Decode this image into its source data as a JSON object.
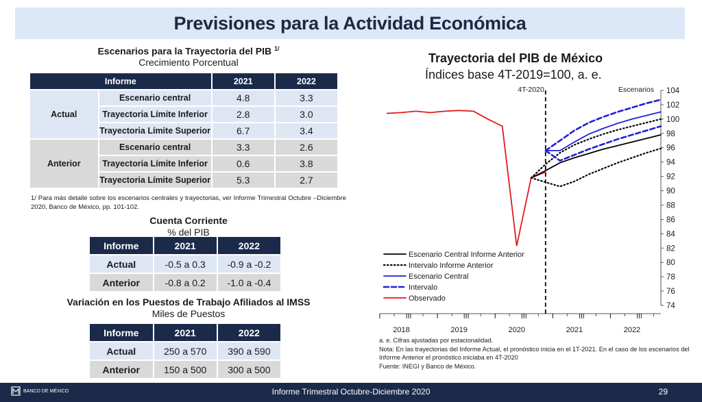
{
  "title": "Previsiones para la Actividad Económica",
  "pib_table": {
    "title": "Escenarios para la Trayectoria del PIB",
    "title_sup": "1/",
    "subtitle": "Crecimiento Porcentual",
    "headers": [
      "Informe",
      "2021",
      "2022"
    ],
    "groups": [
      {
        "label": "Actual",
        "rows": [
          {
            "label": "Escenario central",
            "v2021": "4.8",
            "v2022": "3.3"
          },
          {
            "label": "Trayectoria Límite Inferior",
            "v2021": "2.8",
            "v2022": "3.0"
          },
          {
            "label": "Trayectoria Límite Superior",
            "v2021": "6.7",
            "v2022": "3.4"
          }
        ]
      },
      {
        "label": "Anterior",
        "rows": [
          {
            "label": "Escenario central",
            "v2021": "3.3",
            "v2022": "2.6"
          },
          {
            "label": "Trayectoria Límite Inferior",
            "v2021": "0.6",
            "v2022": "3.8"
          },
          {
            "label": "Trayectoria Límite Superior",
            "v2021": "5.3",
            "v2022": "2.7"
          }
        ]
      }
    ],
    "footnote": "1/ Para más detalle sobre los escenarios centrales y trayectorias, ver Informe Trimestral Octubre –Diciembre 2020, Banco de México, pp. 101-102."
  },
  "cc_table": {
    "title": "Cuenta Corriente",
    "subtitle": "% del PIB",
    "headers": [
      "Informe",
      "2021",
      "2022"
    ],
    "rows": [
      {
        "label": "Actual",
        "v2021": "-0.5 a 0.3",
        "v2022": "-0.9 a -0.2"
      },
      {
        "label": "Anterior",
        "v2021": "-0.8 a 0.2",
        "v2022": "-1.0 a -0.4"
      }
    ]
  },
  "imss_table": {
    "title": "Variación en los Puestos de Trabajo Afiliados al IMSS",
    "subtitle": "Miles de Puestos",
    "headers": [
      "Informe",
      "2021",
      "2022"
    ],
    "rows": [
      {
        "label": "Actual",
        "v2021": "250 a 570",
        "v2022": "390 a 590"
      },
      {
        "label": "Anterior",
        "v2021": "150 a 500",
        "v2022": "300 a 500"
      }
    ]
  },
  "chart_title": "Trayectoria del PIB de México",
  "chart_subtitle": "Índices base 4T-2019=100, a. e.",
  "chart_notes": [
    "a. e. Cifras ajustadas por estacionalidad.",
    "Nota: En las trayectorias del Informe Actual, el pronóstico inicia en el 1T-2021. En el caso de los escenarios del Informe Anterior el pronóstico iniciaba en 4T-2020",
    "Fuente: INEGI y Banco de México."
  ],
  "chart_data": {
    "type": "line",
    "title": "Trayectoria del PIB de México",
    "subtitle": "Índices base 4T-2019=100, a. e.",
    "x_ticks": [
      "I",
      "III",
      "I",
      "III",
      "I",
      "III",
      "I",
      "III",
      "I",
      "III"
    ],
    "x_years": [
      "2018",
      "2019",
      "2020",
      "2021",
      "2022"
    ],
    "y_ticks": [
      74,
      76,
      78,
      80,
      82,
      84,
      86,
      88,
      90,
      92,
      94,
      96,
      98,
      100,
      102,
      104
    ],
    "ylim": [
      74,
      104
    ],
    "y_axis_side": "right",
    "vline_label": "4T-2020",
    "right_label": "Escenarios",
    "legend_position": "bottom-left",
    "colors": {
      "observed": "#e31a1c",
      "actual": "#1f1fd6",
      "anterior": "#000000"
    },
    "series": [
      {
        "name": "Observado",
        "style": "solid",
        "color": "#e31a1c",
        "x": [
          2018.0,
          2018.25,
          2018.5,
          2018.75,
          2019.0,
          2019.25,
          2019.5,
          2019.75,
          2020.0,
          2020.25,
          2020.5,
          2020.75
        ],
        "y": [
          100.8,
          100.9,
          101.1,
          100.9,
          101.1,
          101.2,
          101.1,
          100.0,
          99.0,
          82.3,
          91.8,
          92.6
        ]
      },
      {
        "name": "Escenario Central Informe Anterior",
        "style": "solid",
        "color": "#000000",
        "x": [
          2020.5,
          2020.75,
          2021.0,
          2021.25,
          2021.5,
          2021.75,
          2022.0,
          2022.25,
          2022.5,
          2022.75
        ],
        "y": [
          91.8,
          92.8,
          93.9,
          94.6,
          95.2,
          95.8,
          96.3,
          96.8,
          97.3,
          97.8
        ]
      },
      {
        "name": "Intervalo Informe Anterior",
        "style": "dotted",
        "color": "#000000",
        "x": [
          2020.5,
          2020.75,
          2021.0,
          2021.25,
          2021.5,
          2021.75,
          2022.0,
          2022.25,
          2022.5,
          2022.75
        ],
        "y": [
          91.8,
          91.2,
          90.6,
          91.3,
          92.3,
          93.1,
          93.9,
          94.6,
          95.3,
          95.9
        ]
      },
      {
        "name": "Intervalo Informe Anterior (superior)",
        "style": "dotted",
        "color": "#000000",
        "x": [
          2020.5,
          2020.75,
          2021.0,
          2021.25,
          2021.5,
          2021.75,
          2022.0,
          2022.25,
          2022.5,
          2022.75
        ],
        "y": [
          91.8,
          93.7,
          95.3,
          96.4,
          97.2,
          97.9,
          98.5,
          99.0,
          99.5,
          100.0
        ]
      },
      {
        "name": "Escenario Central",
        "style": "solid",
        "color": "#1f1fd6",
        "x": [
          2020.75,
          2021.0,
          2021.25,
          2021.5,
          2021.75,
          2022.0,
          2022.25,
          2022.5,
          2022.75
        ],
        "y": [
          95.6,
          95.6,
          96.8,
          97.9,
          98.7,
          99.4,
          100.0,
          100.5,
          101.0
        ]
      },
      {
        "name": "Intervalo",
        "style": "dashed",
        "color": "#1f1fd6",
        "x": [
          2020.75,
          2021.0,
          2021.25,
          2021.5,
          2021.75,
          2022.0,
          2022.25,
          2022.5,
          2022.75
        ],
        "y": [
          95.6,
          94.2,
          95.0,
          95.8,
          96.5,
          97.2,
          97.8,
          98.4,
          99.0
        ]
      },
      {
        "name": "Intervalo (superior)",
        "style": "dashed",
        "color": "#1f1fd6",
        "x": [
          2020.75,
          2021.0,
          2021.25,
          2021.5,
          2021.75,
          2022.0,
          2022.25,
          2022.5,
          2022.75
        ],
        "y": [
          95.6,
          97.0,
          98.4,
          99.5,
          100.3,
          101.0,
          101.6,
          102.2,
          102.7
        ]
      }
    ],
    "legend": [
      {
        "label": "Escenario Central Informe Anterior",
        "style": "solid",
        "color": "#000000"
      },
      {
        "label": "Intervalo Informe Anterior",
        "style": "dotted",
        "color": "#000000"
      },
      {
        "label": "Escenario Central",
        "style": "solid",
        "color": "#1f1fd6"
      },
      {
        "label": "Intervalo",
        "style": "dashed",
        "color": "#1f1fd6"
      },
      {
        "label": "Observado",
        "style": "solid",
        "color": "#e31a1c"
      }
    ]
  },
  "footer": {
    "logo_text": "BANCO DE MÉXICO",
    "text": "Informe Trimestral Octubre-Diciembre 2020",
    "page": "29"
  }
}
